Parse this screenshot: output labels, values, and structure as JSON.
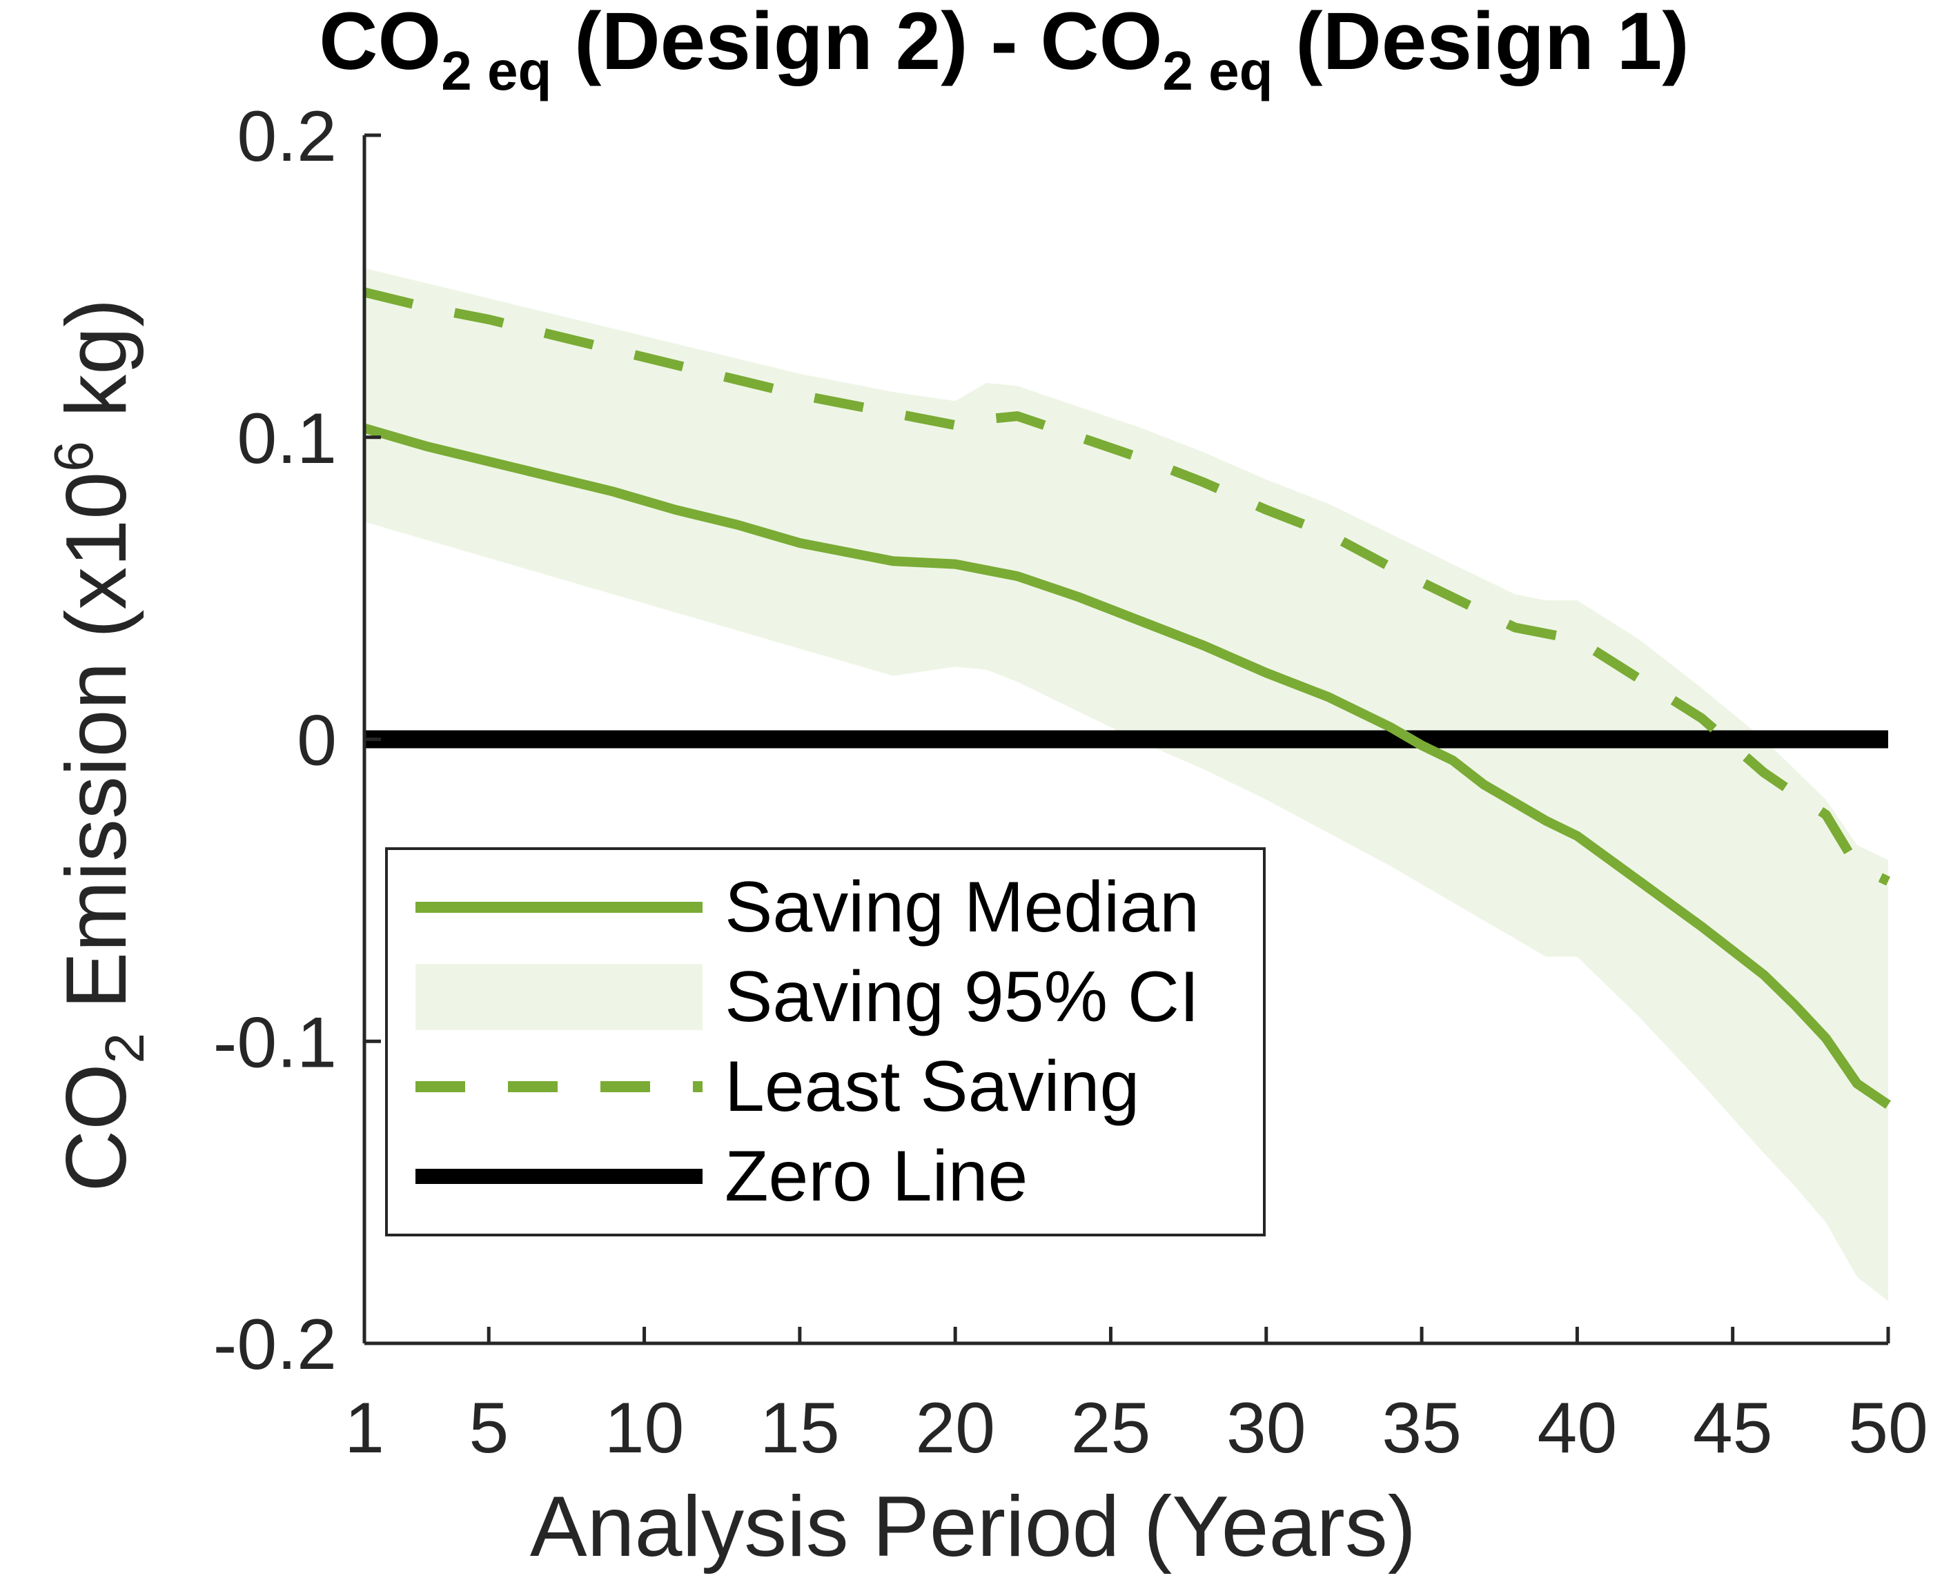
{
  "chart_data": {
    "type": "line",
    "title": {
      "text": "(Design 2) - (Design 1)",
      "part1_main": "CO",
      "part1_sub": "2 eq",
      "part2_main": " (Design 2) - CO",
      "part2_sub": "2 eq",
      "part3_main": " (Design 1)"
    },
    "xlabel": "Analysis Period (Years)",
    "ylabel": {
      "pre": "CO",
      "sub": "2",
      "mid": " Emission (x10",
      "sup": "6",
      "post": " kg)"
    },
    "xlim": [
      1,
      50
    ],
    "ylim": [
      -0.2,
      0.2
    ],
    "x_ticks": [
      1,
      5,
      10,
      15,
      20,
      25,
      30,
      35,
      40,
      45,
      50
    ],
    "x_tick_labels": [
      "1",
      "5",
      "10",
      "15",
      "20",
      "25",
      "30",
      "35",
      "40",
      "45",
      "50"
    ],
    "y_ticks": [
      -0.2,
      -0.1,
      0,
      0.1,
      0.2
    ],
    "y_tick_labels": [
      "-0.2",
      "-0.1",
      "0",
      "0.1",
      "0.2"
    ],
    "grid": false,
    "legend_position": "lower-left",
    "colors": {
      "median": "#7aab35",
      "ci_fill": "#eef5e6",
      "least": "#7aab35",
      "zero": "#000000",
      "axis": "#262626"
    },
    "x": [
      1,
      3,
      5,
      7,
      9,
      11,
      13,
      15,
      17,
      18,
      20,
      21,
      22,
      24,
      26,
      28,
      30,
      32,
      34,
      35,
      36,
      37,
      38,
      39,
      40,
      42,
      44,
      46,
      47,
      48,
      49,
      50
    ],
    "series": [
      {
        "name": "Saving Median",
        "style": "solid",
        "values": [
          0.103,
          0.097,
          0.092,
          0.087,
          0.082,
          0.076,
          0.071,
          0.065,
          0.061,
          0.059,
          0.058,
          0.056,
          0.054,
          0.047,
          0.039,
          0.031,
          0.022,
          0.014,
          0.004,
          -0.002,
          -0.007,
          -0.015,
          -0.021,
          -0.027,
          -0.032,
          -0.047,
          -0.062,
          -0.078,
          -0.088,
          -0.099,
          -0.114,
          -0.121
        ]
      },
      {
        "name": "Least Saving",
        "style": "dashed",
        "values": [
          0.148,
          0.143,
          0.139,
          0.134,
          0.129,
          0.124,
          0.119,
          0.114,
          0.11,
          0.108,
          0.104,
          0.106,
          0.107,
          0.1,
          0.093,
          0.085,
          0.076,
          0.068,
          0.057,
          0.052,
          0.047,
          0.042,
          0.037,
          0.035,
          0.033,
          0.02,
          0.007,
          -0.011,
          -0.018,
          -0.025,
          -0.042,
          -0.047
        ]
      }
    ],
    "band": {
      "name": "Saving 95% CI",
      "upper": [
        0.156,
        0.151,
        0.146,
        0.141,
        0.136,
        0.131,
        0.126,
        0.121,
        0.117,
        0.115,
        0.112,
        0.118,
        0.117,
        0.11,
        0.103,
        0.095,
        0.086,
        0.078,
        0.068,
        0.063,
        0.058,
        0.053,
        0.048,
        0.046,
        0.046,
        0.033,
        0.017,
        0.0,
        -0.01,
        -0.02,
        -0.035,
        -0.04
      ],
      "lower": [
        0.072,
        0.066,
        0.06,
        0.054,
        0.048,
        0.042,
        0.036,
        0.03,
        0.024,
        0.021,
        0.024,
        0.023,
        0.019,
        0.009,
        -0.001,
        -0.01,
        -0.02,
        -0.031,
        -0.042,
        -0.048,
        -0.054,
        -0.06,
        -0.066,
        -0.072,
        -0.072,
        -0.092,
        -0.114,
        -0.137,
        -0.148,
        -0.16,
        -0.178,
        -0.186
      ]
    },
    "zero_line": {
      "name": "Zero Line",
      "value": 0
    },
    "legend": [
      "Saving Median",
      "Saving 95% CI",
      "Least Saving",
      "Zero Line"
    ]
  }
}
